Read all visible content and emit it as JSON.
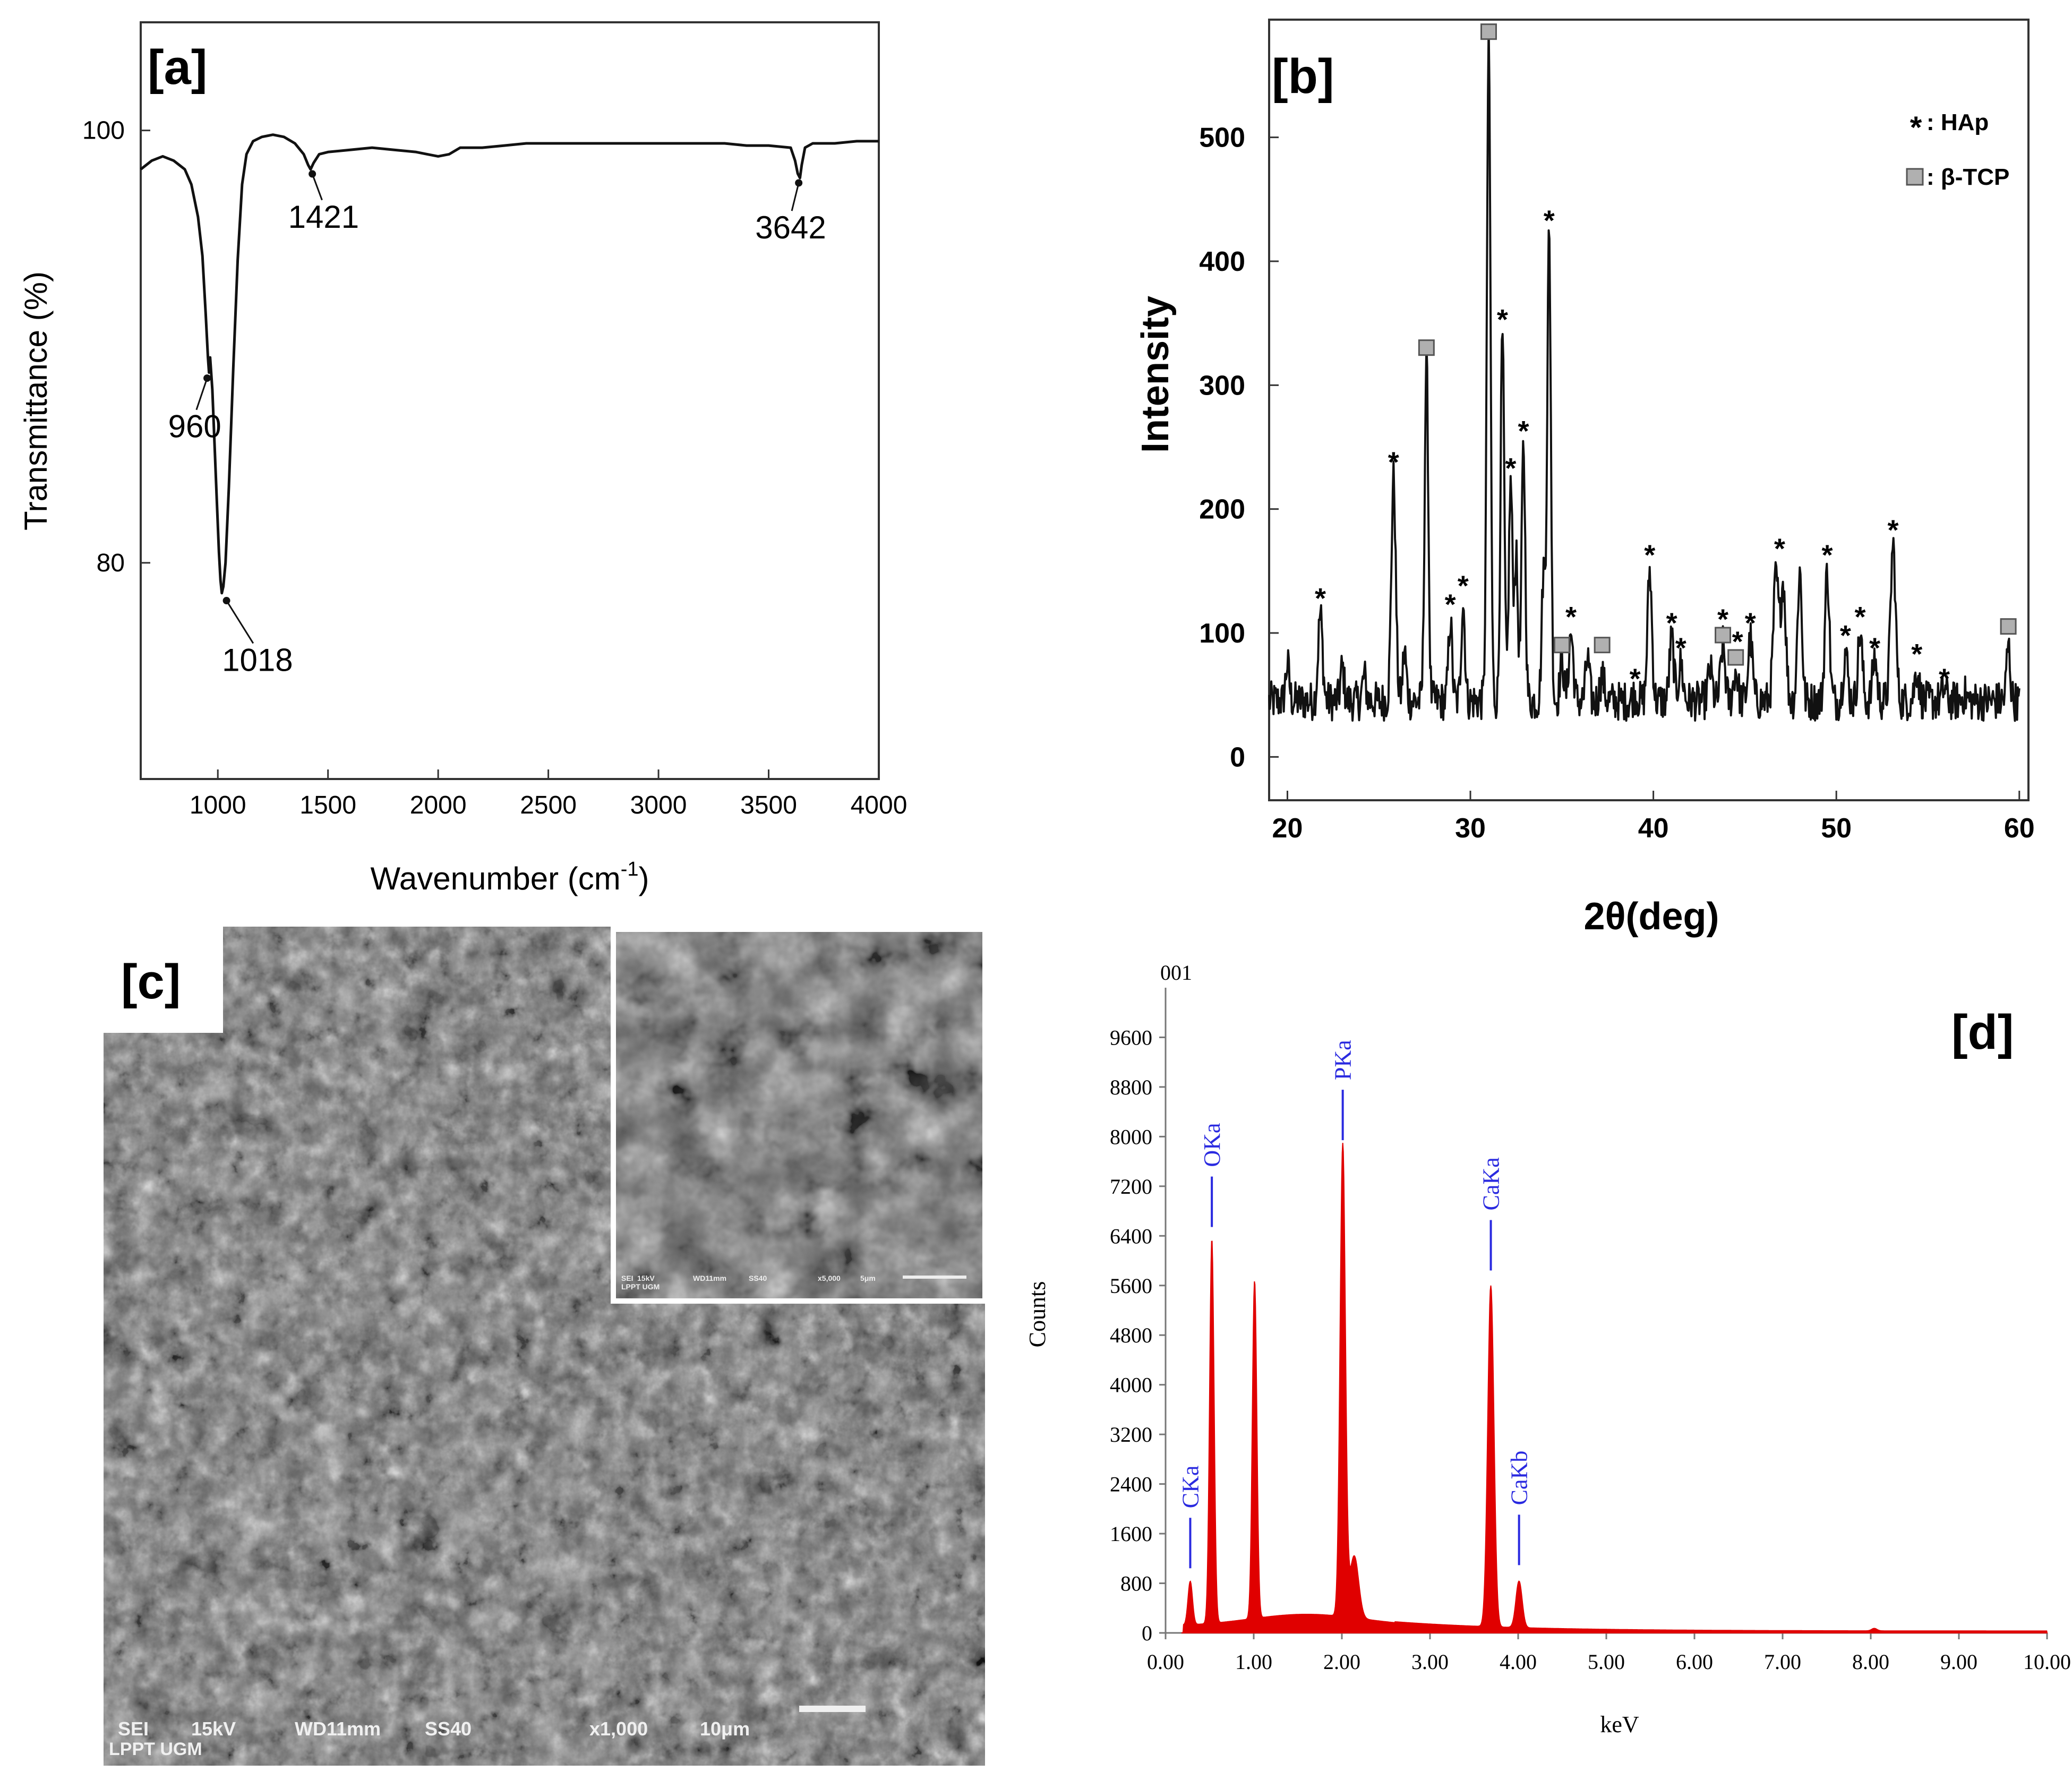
{
  "panel_labels": {
    "a": "[a]",
    "b": "[b]",
    "c": "[c]",
    "d": "[d]"
  },
  "colors": {
    "ftir_line": "#111111",
    "xrd_line": "#111111",
    "eds_fill": "#e00000",
    "eds_label": "#2a2ae0",
    "sem_dark": "#3a3a3a",
    "sem_light": "#b8b8b8"
  },
  "chart_data": [
    {
      "id": "a",
      "type": "line",
      "title": "",
      "xlabel": "Wavenumber (cm",
      "xlabel_sup": "-1",
      "xlabel_suffix": ")",
      "ylabel": "Transmittance (%)",
      "xlim": [
        650,
        4000
      ],
      "ylim": [
        70,
        105
      ],
      "xticks": [
        1000,
        1500,
        2000,
        2500,
        3000,
        3500,
        4000
      ],
      "yticks": [
        80,
        100
      ],
      "series": [
        {
          "name": "FTIR",
          "points": [
            [
              650,
              98.2
            ],
            [
              700,
              98.6
            ],
            [
              750,
              98.8
            ],
            [
              800,
              98.6
            ],
            [
              850,
              98.2
            ],
            [
              880,
              97.5
            ],
            [
              910,
              96.0
            ],
            [
              930,
              94.2
            ],
            [
              945,
              91.5
            ],
            [
              955,
              89.5
            ],
            [
              960,
              88.8
            ],
            [
              965,
              89.5
            ],
            [
              975,
              88.0
            ],
            [
              985,
              85.5
            ],
            [
              995,
              83.0
            ],
            [
              1005,
              80.5
            ],
            [
              1012,
              79.2
            ],
            [
              1018,
              78.6
            ],
            [
              1025,
              78.9
            ],
            [
              1035,
              80.0
            ],
            [
              1050,
              83.5
            ],
            [
              1070,
              89.0
            ],
            [
              1090,
              94.0
            ],
            [
              1110,
              97.5
            ],
            [
              1130,
              98.9
            ],
            [
              1160,
              99.5
            ],
            [
              1200,
              99.7
            ],
            [
              1250,
              99.8
            ],
            [
              1300,
              99.7
            ],
            [
              1350,
              99.4
            ],
            [
              1390,
              98.9
            ],
            [
              1410,
              98.4
            ],
            [
              1421,
              98.2
            ],
            [
              1435,
              98.5
            ],
            [
              1460,
              98.9
            ],
            [
              1500,
              99.0
            ],
            [
              1600,
              99.1
            ],
            [
              1700,
              99.2
            ],
            [
              1800,
              99.1
            ],
            [
              1900,
              99.0
            ],
            [
              1950,
              98.9
            ],
            [
              2000,
              98.8
            ],
            [
              2050,
              98.9
            ],
            [
              2100,
              99.2
            ],
            [
              2200,
              99.2
            ],
            [
              2300,
              99.3
            ],
            [
              2400,
              99.4
            ],
            [
              2500,
              99.4
            ],
            [
              2600,
              99.4
            ],
            [
              2700,
              99.4
            ],
            [
              2800,
              99.4
            ],
            [
              2900,
              99.4
            ],
            [
              3000,
              99.4
            ],
            [
              3100,
              99.4
            ],
            [
              3200,
              99.4
            ],
            [
              3300,
              99.4
            ],
            [
              3400,
              99.3
            ],
            [
              3500,
              99.3
            ],
            [
              3600,
              99.2
            ],
            [
              3620,
              98.6
            ],
            [
              3632,
              98.0
            ],
            [
              3642,
              97.8
            ],
            [
              3650,
              98.4
            ],
            [
              3665,
              99.2
            ],
            [
              3700,
              99.4
            ],
            [
              3800,
              99.4
            ],
            [
              3900,
              99.5
            ],
            [
              4000,
              99.5
            ]
          ]
        }
      ],
      "annotations": [
        {
          "text": "1421",
          "x": 1421,
          "y": 98.2,
          "label_x": 1480,
          "label_y": 95.5
        },
        {
          "text": "3642",
          "x": 3642,
          "y": 97.8,
          "label_x": 3600,
          "label_y": 95.0
        },
        {
          "text": "960",
          "x": 960,
          "y": 88.8,
          "label_x": 895,
          "label_y": 85.8
        },
        {
          "text": "1018",
          "x": 1018,
          "y": 78.6,
          "label_x": 1180,
          "label_y": 75.0
        }
      ]
    },
    {
      "id": "b",
      "type": "line",
      "title": "",
      "xlabel": "2θ(deg)",
      "ylabel": "Intensity",
      "xlim": [
        19,
        60.5
      ],
      "ylim": [
        -35,
        595
      ],
      "xticks": [
        20,
        30,
        40,
        50,
        60
      ],
      "yticks": [
        0,
        100,
        200,
        300,
        400,
        500
      ],
      "legend": {
        "placement": "top-right",
        "entries": [
          {
            "marker": "star",
            "label": ": HAp"
          },
          {
            "marker": "square",
            "label": ": β-TCP"
          }
        ]
      },
      "baseline": 45,
      "peaks": [
        [
          20.0,
          75,
          0.1
        ],
        [
          21.8,
          115,
          0.12
        ],
        [
          23.0,
          72,
          0.1
        ],
        [
          24.2,
          65,
          0.1
        ],
        [
          25.8,
          225,
          0.12
        ],
        [
          26.4,
          85,
          0.1
        ],
        [
          27.6,
          320,
          0.1
        ],
        [
          28.9,
          110,
          0.1
        ],
        [
          29.6,
          125,
          0.1
        ],
        [
          31.0,
          575,
          0.1
        ],
        [
          31.75,
          340,
          0.1
        ],
        [
          32.2,
          220,
          0.1
        ],
        [
          32.5,
          160,
          0.1
        ],
        [
          32.9,
          250,
          0.1
        ],
        [
          34.0,
          150,
          0.1
        ],
        [
          34.3,
          420,
          0.1
        ],
        [
          35.0,
          80,
          0.1
        ],
        [
          35.5,
          100,
          0.12
        ],
        [
          36.4,
          80,
          0.1
        ],
        [
          37.2,
          65,
          0.12
        ],
        [
          39.0,
          50,
          0.12
        ],
        [
          39.8,
          150,
          0.12
        ],
        [
          41.0,
          95,
          0.12
        ],
        [
          41.5,
          75,
          0.12
        ],
        [
          43.1,
          70,
          0.12
        ],
        [
          43.8,
          90,
          0.12
        ],
        [
          44.5,
          70,
          0.12
        ],
        [
          45.3,
          95,
          0.12
        ],
        [
          46.7,
          145,
          0.14
        ],
        [
          47.1,
          140,
          0.14
        ],
        [
          48.0,
          150,
          0.12
        ],
        [
          49.5,
          150,
          0.12
        ],
        [
          50.5,
          85,
          0.12
        ],
        [
          51.3,
          100,
          0.12
        ],
        [
          52.1,
          80,
          0.12
        ],
        [
          53.1,
          170,
          0.14
        ],
        [
          54.4,
          70,
          0.12
        ],
        [
          55.9,
          55,
          0.12
        ],
        [
          57.0,
          50,
          0.12
        ],
        [
          59.4,
          90,
          0.1
        ]
      ],
      "markers": [
        {
          "type": "star",
          "x": 21.8,
          "y": 115
        },
        {
          "type": "star",
          "x": 25.8,
          "y": 225
        },
        {
          "type": "square",
          "x": 27.6,
          "y": 320
        },
        {
          "type": "star",
          "x": 28.9,
          "y": 110
        },
        {
          "type": "star",
          "x": 29.6,
          "y": 125
        },
        {
          "type": "square",
          "x": 31.0,
          "y": 575
        },
        {
          "type": "star",
          "x": 31.75,
          "y": 340
        },
        {
          "type": "star",
          "x": 32.2,
          "y": 220
        },
        {
          "type": "star",
          "x": 32.9,
          "y": 250
        },
        {
          "type": "star",
          "x": 34.3,
          "y": 420
        },
        {
          "type": "square",
          "x": 35.0,
          "y": 80
        },
        {
          "type": "star",
          "x": 35.5,
          "y": 100
        },
        {
          "type": "square",
          "x": 37.2,
          "y": 80
        },
        {
          "type": "star",
          "x": 39.0,
          "y": 50
        },
        {
          "type": "star",
          "x": 39.8,
          "y": 150
        },
        {
          "type": "star",
          "x": 41.0,
          "y": 95
        },
        {
          "type": "star",
          "x": 41.5,
          "y": 75
        },
        {
          "type": "square",
          "x": 43.8,
          "y": 88
        },
        {
          "type": "star",
          "x": 43.8,
          "y": 98
        },
        {
          "type": "square",
          "x": 44.5,
          "y": 70
        },
        {
          "type": "star",
          "x": 44.6,
          "y": 80
        },
        {
          "type": "star",
          "x": 45.3,
          "y": 95
        },
        {
          "type": "star",
          "x": 46.9,
          "y": 155
        },
        {
          "type": "star",
          "x": 49.5,
          "y": 150
        },
        {
          "type": "star",
          "x": 50.5,
          "y": 85
        },
        {
          "type": "star",
          "x": 51.3,
          "y": 100
        },
        {
          "type": "star",
          "x": 52.1,
          "y": 75
        },
        {
          "type": "star",
          "x": 53.1,
          "y": 170
        },
        {
          "type": "star",
          "x": 54.4,
          "y": 70
        },
        {
          "type": "star",
          "x": 55.9,
          "y": 50
        },
        {
          "type": "square",
          "x": 59.4,
          "y": 95
        }
      ]
    },
    {
      "id": "d",
      "type": "area",
      "title": "001",
      "xlabel": "keV",
      "ylabel": "Counts",
      "xlim": [
        0,
        10
      ],
      "ylim": [
        0,
        10400
      ],
      "xticks": [
        "0.00",
        "1.00",
        "2.00",
        "3.00",
        "4.00",
        "5.00",
        "6.00",
        "7.00",
        "8.00",
        "9.00",
        "10.00"
      ],
      "yticks": [
        0,
        800,
        1600,
        2400,
        3200,
        4000,
        4800,
        5600,
        6400,
        7200,
        8000,
        8800,
        9600
      ],
      "peaks": [
        [
          0.28,
          700,
          0.025
        ],
        [
          0.525,
          6200,
          0.025
        ],
        [
          1.01,
          5450,
          0.025
        ],
        [
          2.01,
          7600,
          0.03
        ],
        [
          2.14,
          1000,
          0.05
        ],
        [
          3.69,
          5500,
          0.035
        ],
        [
          4.01,
          750,
          0.035
        ]
      ],
      "labels": [
        {
          "text": "CKa",
          "x": 0.28
        },
        {
          "text": "OKa",
          "x": 0.525
        },
        {
          "text": "PKa",
          "x": 2.01
        },
        {
          "text": "CaKa",
          "x": 3.69
        },
        {
          "text": "CaKb",
          "x": 4.01
        }
      ]
    }
  ],
  "sem": {
    "main": {
      "signal": "SEI",
      "voltage": "15kV",
      "wd": "WD11mm",
      "spot": "SS40",
      "mag": "x1,000",
      "scale": "10μm",
      "lab": "LPPT UGM"
    },
    "inset": {
      "signal": "SEI",
      "voltage": "15kV",
      "wd": "WD11mm",
      "spot": "SS40",
      "mag": "x5,000",
      "scale": "5μm",
      "lab": "LPPT UGM"
    }
  }
}
